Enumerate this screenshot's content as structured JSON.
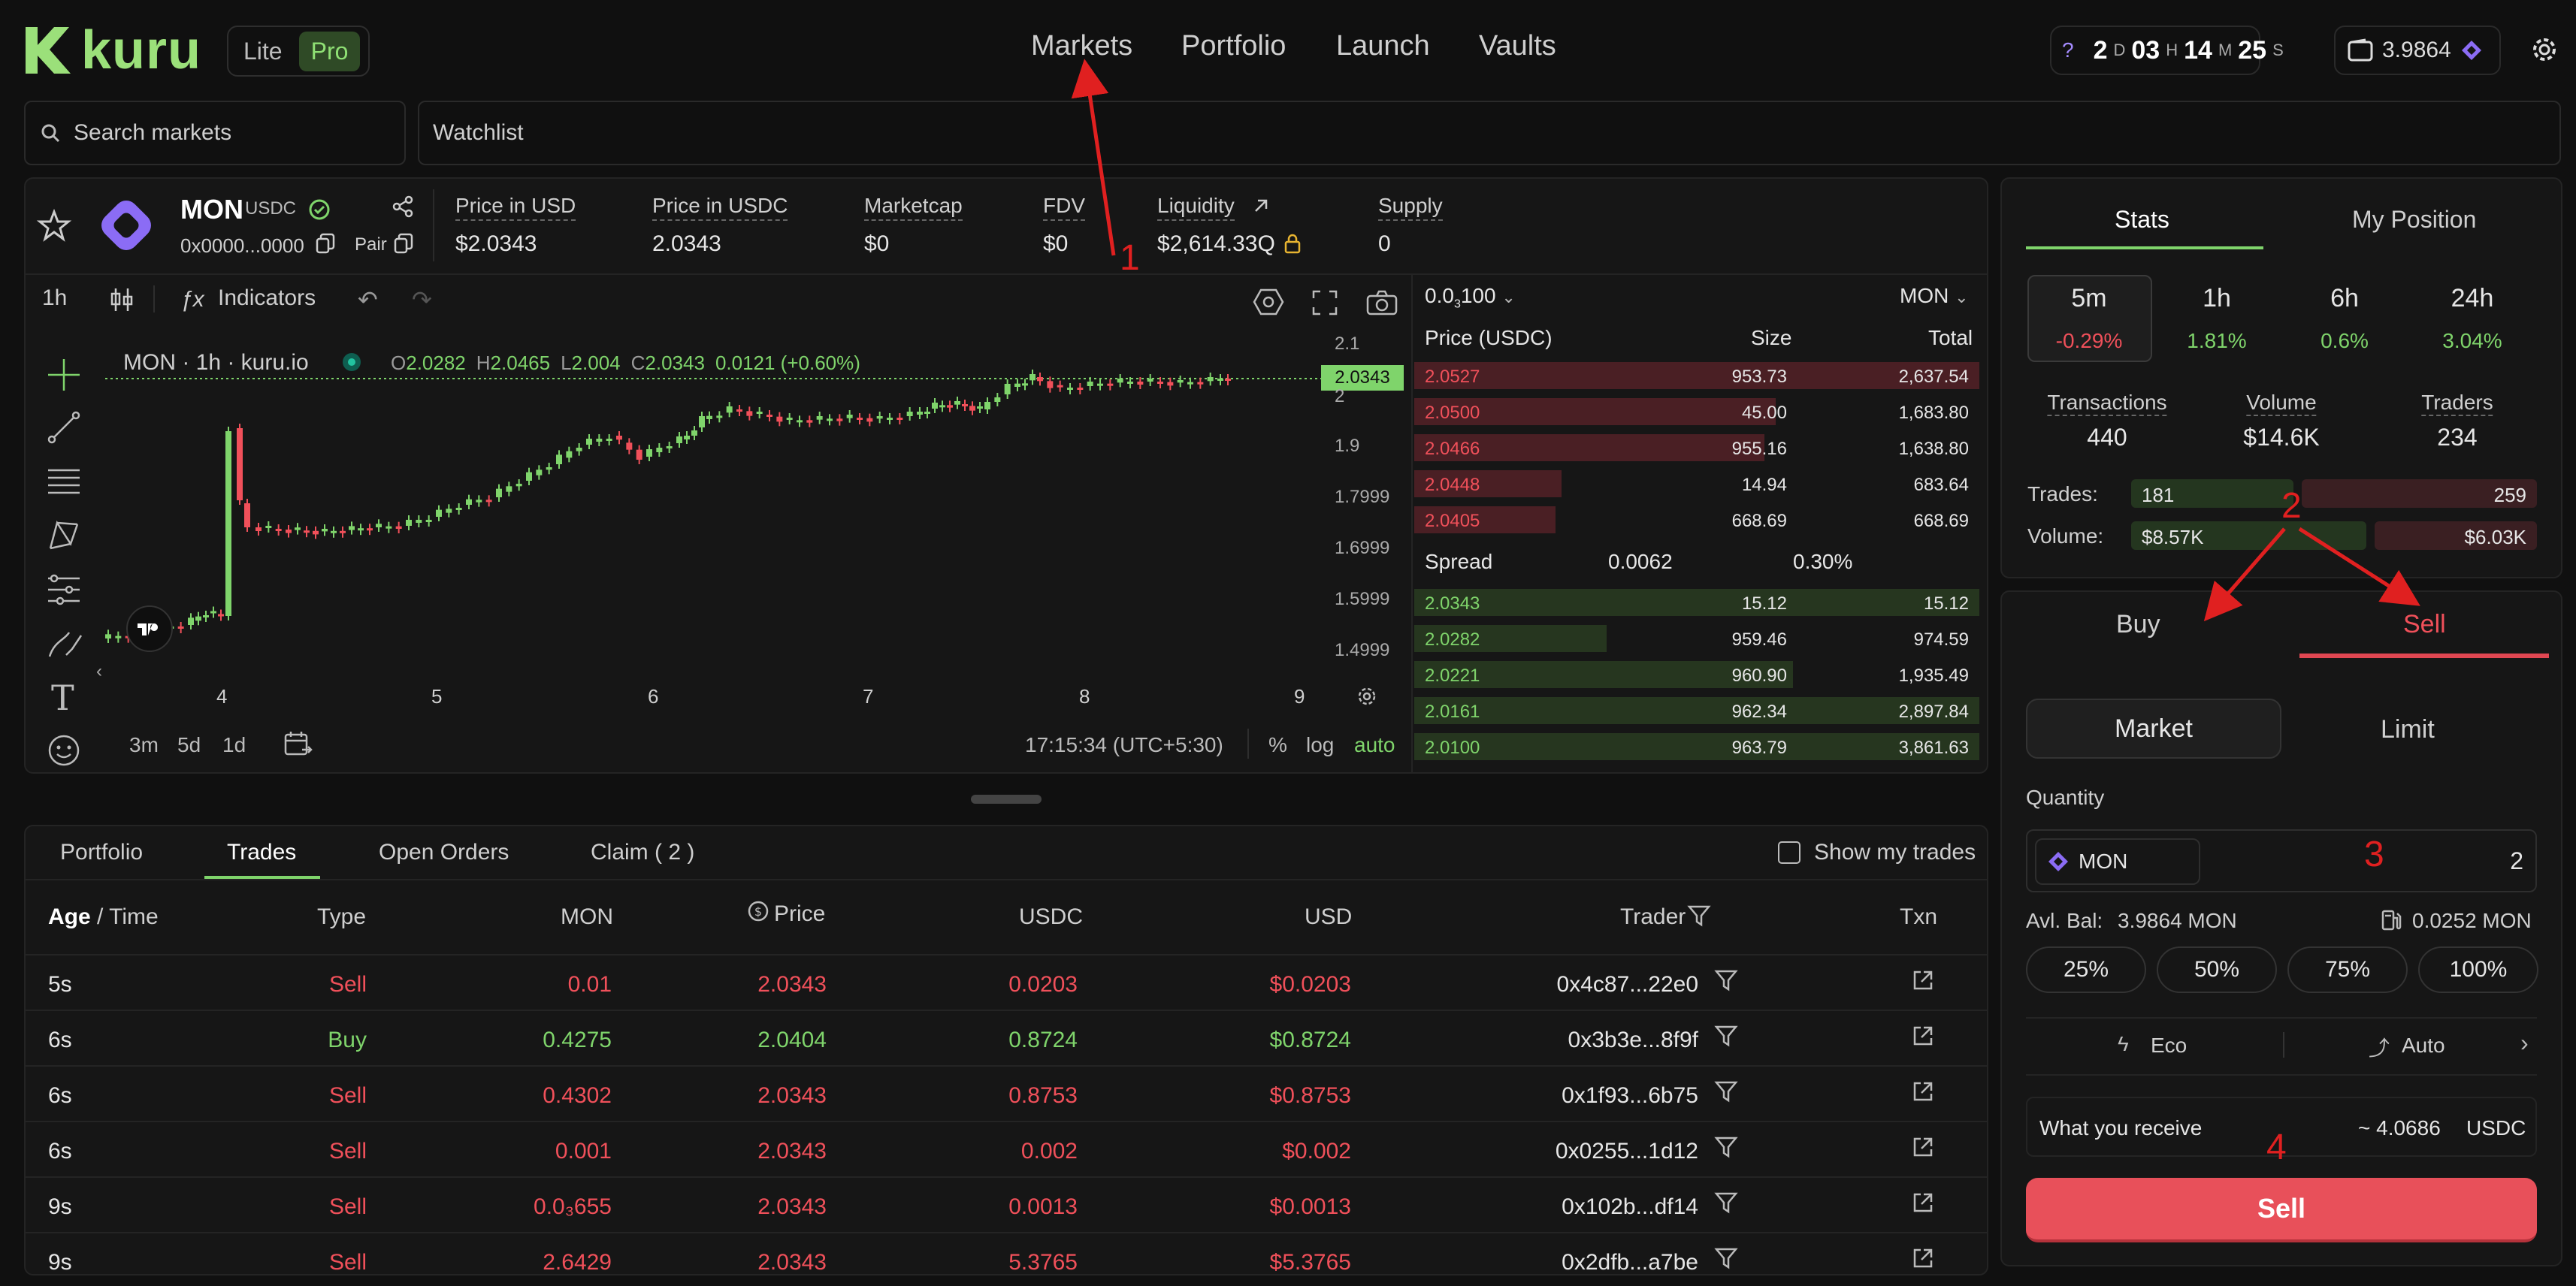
{
  "header": {
    "logo": "kuru",
    "mode_lite": "Lite",
    "mode_pro": "Pro",
    "nav": [
      "Markets",
      "Portfolio",
      "Launch",
      "Vaults"
    ],
    "timer": {
      "help": "?",
      "d": "2",
      "d_unit": "D",
      "h": "03",
      "h_unit": "H",
      "m": "14",
      "m_unit": "M",
      "s": "25",
      "s_unit": "S"
    },
    "wallet_balance": "3.9864"
  },
  "search": {
    "placeholder": "Search markets",
    "watchlist": "Watchlist"
  },
  "market": {
    "base": "MON",
    "quote": "USDC",
    "address": "0x0000...0000",
    "pair_label": "Pair",
    "stats": [
      {
        "label": "Price in USD",
        "value": "$2.0343"
      },
      {
        "label": "Price in USDC",
        "value": "2.0343"
      },
      {
        "label": "Marketcap",
        "value": "$0"
      },
      {
        "label": "FDV",
        "value": "$0"
      },
      {
        "label": "Liquidity",
        "value": "$2,614.33Q"
      },
      {
        "label": "Supply",
        "value": "0"
      }
    ]
  },
  "chart": {
    "interval": "1h",
    "indicators_label": "Indicators",
    "legend_title": "MON · 1h · kuru.io",
    "ohlc": {
      "o_label": "O",
      "o": "2.0282",
      "h_label": "H",
      "h": "2.0465",
      "l_label": "L",
      "l": "2.004",
      "c_label": "C",
      "c": "2.0343",
      "change": "0.0121 (+0.60%)"
    },
    "last_price_tag": "2.0343",
    "y_ticks": [
      "2.1",
      "2",
      "1.9",
      "1.7999",
      "1.6999",
      "1.5999",
      "1.4999"
    ],
    "x_ticks": [
      "4",
      "5",
      "6",
      "7",
      "8",
      "9"
    ],
    "ranges": [
      "3m",
      "5d",
      "1d"
    ],
    "clock": "17:15:34 (UTC+5:30)",
    "scale_opts": [
      "%",
      "log",
      "auto"
    ]
  },
  "orderbook": {
    "tick_main": "0.0",
    "tick_sub": "3",
    "tick_tail": "100",
    "unit_select": "MON",
    "col_price": "Price (USDC)",
    "col_size": "Size",
    "col_total": "Total",
    "asks": [
      {
        "price": "2.0527",
        "size": "953.73",
        "total": "2,637.54",
        "depth": 1.0
      },
      {
        "price": "2.0500",
        "size": "45.00",
        "total": "1,683.80",
        "depth": 0.64
      },
      {
        "price": "2.0466",
        "size": "955.16",
        "total": "1,638.80",
        "depth": 0.62
      },
      {
        "price": "2.0448",
        "size": "14.94",
        "total": "683.64",
        "depth": 0.26
      },
      {
        "price": "2.0405",
        "size": "668.69",
        "total": "668.69",
        "depth": 0.25
      }
    ],
    "spread_label": "Spread",
    "spread_value": "0.0062",
    "spread_pct": "0.30%",
    "bids": [
      {
        "price": "2.0343",
        "size": "15.12",
        "total": "15.12",
        "depth": 1.0
      },
      {
        "price": "2.0282",
        "size": "959.46",
        "total": "974.59",
        "depth": 0.34
      },
      {
        "price": "2.0221",
        "size": "960.90",
        "total": "1,935.49",
        "depth": 0.67
      },
      {
        "price": "2.0161",
        "size": "962.34",
        "total": "2,897.84",
        "depth": 1.0
      },
      {
        "price": "2.0100",
        "size": "963.79",
        "total": "3,861.63",
        "depth": 1.0
      }
    ]
  },
  "trades_panel": {
    "tabs": [
      "Portfolio",
      "Trades",
      "Open Orders",
      "Claim ( 2 )"
    ],
    "show_my_trades": "Show my trades",
    "columns": {
      "age": "Age",
      "sep": "/",
      "time": "Time",
      "type": "Type",
      "mon": "MON",
      "price": "Price",
      "usdc": "USDC",
      "usd": "USD",
      "trader": "Trader",
      "txn": "Txn"
    },
    "rows": [
      {
        "age": "5s",
        "type": "Sell",
        "mon": "0.01",
        "price": "2.0343",
        "usdc": "0.0203",
        "usd": "$0.0203",
        "trader": "0x4c87...22e0"
      },
      {
        "age": "6s",
        "type": "Buy",
        "mon": "0.4275",
        "price": "2.0404",
        "usdc": "0.8724",
        "usd": "$0.8724",
        "trader": "0x3b3e...8f9f"
      },
      {
        "age": "6s",
        "type": "Sell",
        "mon": "0.4302",
        "price": "2.0343",
        "usdc": "0.8753",
        "usd": "$0.8753",
        "trader": "0x1f93...6b75"
      },
      {
        "age": "6s",
        "type": "Sell",
        "mon": "0.001",
        "price": "2.0343",
        "usdc": "0.002",
        "usd": "$0.002",
        "trader": "0x0255...1d12"
      },
      {
        "age": "9s",
        "type": "Sell",
        "mon": "0.0₃655",
        "price": "2.0343",
        "usdc": "0.0013",
        "usd": "$0.0013",
        "trader": "0x102b...df14"
      },
      {
        "age": "9s",
        "type": "Sell",
        "mon": "2.6429",
        "price": "2.0343",
        "usdc": "5.3765",
        "usd": "$5.3765",
        "trader": "0x2dfb...a7be"
      }
    ]
  },
  "stats_panel": {
    "tabs": [
      "Stats",
      "My Position"
    ],
    "periods": [
      {
        "label": "5m",
        "change": "-0.29%"
      },
      {
        "label": "1h",
        "change": "1.81%"
      },
      {
        "label": "6h",
        "change": "0.6%"
      },
      {
        "label": "24h",
        "change": "3.04%"
      }
    ],
    "metrics": [
      {
        "label": "Transactions",
        "value": "440"
      },
      {
        "label": "Volume",
        "value": "$14.6K"
      },
      {
        "label": "Traders",
        "value": "234"
      }
    ],
    "trades_label": "Trades:",
    "trades_buy": "181",
    "trades_sell": "259",
    "trades_buy_share": 0.41,
    "volume_label": "Volume:",
    "volume_buy": "$8.57K",
    "volume_sell": "$6.03K",
    "volume_buy_share": 0.59
  },
  "order_form": {
    "side_buy": "Buy",
    "side_sell": "Sell",
    "type_market": "Market",
    "type_limit": "Limit",
    "quantity_label": "Quantity",
    "token": "MON",
    "quantity_value": "2",
    "avbl_label": "Avl. Bal:",
    "avbl_value": "3.9864 MON",
    "gas_value": "0.0252 MON",
    "pcts": [
      "25%",
      "50%",
      "75%",
      "100%"
    ],
    "eco_label": "Eco",
    "auto_label": "Auto",
    "receive_label": "What you receive",
    "receive_value": "~ 4.0686",
    "receive_unit": "USDC",
    "submit_label": "Sell"
  },
  "annotations": [
    "1",
    "2",
    "3",
    "4"
  ],
  "colors": {
    "green": "#7fd46b",
    "red": "#f0505a",
    "bg": "#101010",
    "panel": "#161616"
  }
}
